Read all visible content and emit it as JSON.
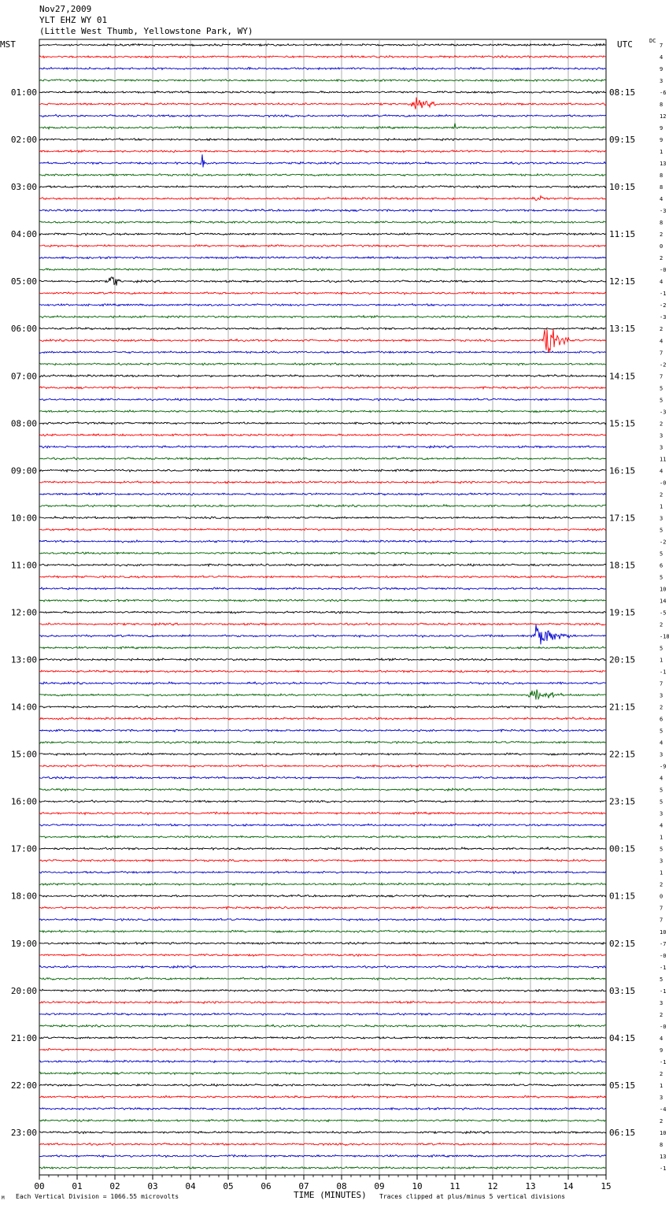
{
  "header": {
    "date": "Nov27,2009",
    "station": "YLT EHZ WY 01",
    "location": "(Little West Thumb, Yellowstone Park, WY)"
  },
  "left_tz": "MST",
  "right_tz": "UTC",
  "dc_label": "DC",
  "footer": {
    "scale": "Each Vertical Division = 1066.55 microvolts",
    "clip": "Traces clipped at plus/minus 5 vertical divisions",
    "mark": "M"
  },
  "chart_data": {
    "type": "line",
    "xlabel": "TIME (MINUTES)",
    "xlim": [
      0,
      15
    ],
    "x_ticks": [
      "00",
      "01",
      "02",
      "03",
      "04",
      "05",
      "06",
      "07",
      "08",
      "09",
      "10",
      "11",
      "12",
      "13",
      "14",
      "15"
    ],
    "traces_per_hour": 4,
    "trace_colors": [
      "#000000",
      "#ff0000",
      "#0000cc",
      "#006400"
    ],
    "left_hour_labels": [
      "01:00",
      "02:00",
      "03:00",
      "04:00",
      "05:00",
      "06:00",
      "07:00",
      "08:00",
      "09:00",
      "10:00",
      "11:00",
      "12:00",
      "13:00",
      "14:00",
      "15:00",
      "16:00",
      "17:00",
      "18:00",
      "19:00",
      "20:00",
      "21:00",
      "22:00",
      "23:00"
    ],
    "right_hour_labels": [
      "08:15",
      "09:15",
      "10:15",
      "11:15",
      "12:15",
      "13:15",
      "14:15",
      "15:15",
      "16:15",
      "17:15",
      "18:15",
      "19:15",
      "20:15",
      "21:15",
      "22:15",
      "23:15",
      "00:15",
      "01:15",
      "02:15",
      "03:15",
      "04:15",
      "05:15",
      "06:15"
    ],
    "dc_offsets": [
      "7",
      "4",
      "9",
      "3",
      "-6",
      "8",
      "12",
      "9",
      "9",
      "1",
      "13",
      "8",
      "8",
      "4",
      "-3",
      "8",
      "2",
      "0",
      "2",
      "-0",
      "4",
      "-1",
      "-2",
      "-3",
      "2",
      "4",
      "7",
      "-2",
      "7",
      "5",
      "5",
      "-3",
      "2",
      "3",
      "3",
      "11",
      "4",
      "-0",
      "2",
      "1",
      "3",
      "5",
      "-2",
      "5",
      "6",
      "5",
      "10",
      "14",
      "-5",
      "2",
      "-18",
      "5",
      "1",
      "-1",
      "7",
      "3",
      "2",
      "6",
      "5",
      "4",
      "3",
      "-9",
      "4",
      "5",
      "5",
      "3",
      "4",
      "1",
      "5",
      "3",
      "1",
      "2",
      "0",
      "7",
      "7",
      "10",
      "-7",
      "-0",
      "-1",
      "5",
      "-1",
      "3",
      "2",
      "-0",
      "4",
      "9",
      "-1",
      "2",
      "1",
      "3",
      "-4",
      "2",
      "10",
      "8",
      "13",
      "-1"
    ],
    "events": [
      {
        "trace": 5,
        "minute": 9.9,
        "duration_min": 1.0,
        "amplitude_div": 0.9
      },
      {
        "trace": 7,
        "minute": 11.0,
        "duration_min": 0.1,
        "amplitude_div": 1.0
      },
      {
        "trace": 10,
        "minute": 4.3,
        "duration_min": 0.2,
        "amplitude_div": 1.2
      },
      {
        "trace": 13,
        "minute": 13.1,
        "duration_min": 0.5,
        "amplitude_div": 0.7
      },
      {
        "trace": 20,
        "minute": 1.9,
        "duration_min": 0.25,
        "amplitude_div": 2.3
      },
      {
        "trace": 25,
        "minute": 13.4,
        "duration_min": 0.6,
        "amplitude_div": 5.0
      },
      {
        "trace": 50,
        "minute": 13.1,
        "duration_min": 1.0,
        "amplitude_div": 2.3
      },
      {
        "trace": 55,
        "minute": 13.0,
        "duration_min": 1.0,
        "amplitude_div": 1.3
      }
    ]
  }
}
